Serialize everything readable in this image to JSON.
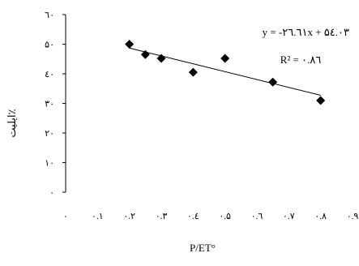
{
  "chart_data": {
    "type": "scatter",
    "xlabel": "P/ET°",
    "ylabel": "ايليت٪",
    "xlim": [
      0,
      0.9
    ],
    "ylim": [
      0,
      60
    ],
    "x_ticks": [
      0,
      0.1,
      0.2,
      0.3,
      0.4,
      0.5,
      0.6,
      0.7,
      0.8,
      0.9
    ],
    "x_tick_labels": [
      "۰",
      "۰.۱",
      "۰.۲",
      "۰.۳",
      "۰.٤",
      "۰.۵",
      "۰.٦",
      "۰.۷",
      "۰.۸",
      "۰.۹"
    ],
    "y_ticks": [
      0,
      10,
      20,
      30,
      40,
      50,
      60
    ],
    "y_tick_labels": [
      "۰",
      "۱۰",
      "۲۰",
      "۳۰",
      "٤۰",
      "۵۰",
      "٦۰"
    ],
    "grid": false,
    "legend": "none",
    "marker": "diamond",
    "marker_color": "#000000",
    "points": [
      {
        "x": 0.2,
        "y": 50.0
      },
      {
        "x": 0.25,
        "y": 46.5
      },
      {
        "x": 0.3,
        "y": 45.2
      },
      {
        "x": 0.4,
        "y": 40.5
      },
      {
        "x": 0.5,
        "y": 45.2
      },
      {
        "x": 0.65,
        "y": 37.2
      },
      {
        "x": 0.8,
        "y": 31.0
      }
    ],
    "trendline": {
      "type": "linear",
      "slope": -26.61,
      "intercept": 54.03,
      "x_range": [
        0.2,
        0.8
      ],
      "equation_label": "y = -۲٦.٦۱x + ۵٤.۰۳",
      "r2_label": "R² = ۰.۸٦"
    }
  }
}
